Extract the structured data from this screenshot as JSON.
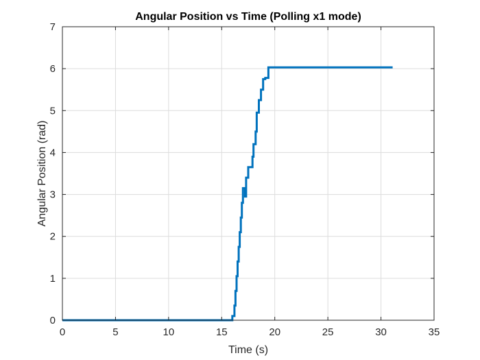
{
  "chart_data": {
    "type": "line",
    "title": "Angular Position vs Time (Polling x1 mode)",
    "xlabel": "Time (s)",
    "ylabel": "Angular Position (rad)",
    "xlim": [
      0,
      35
    ],
    "ylim": [
      0,
      7
    ],
    "xticks": [
      "0",
      "5",
      "10",
      "15",
      "20",
      "25",
      "30",
      "35"
    ],
    "yticks": [
      "0",
      "1",
      "2",
      "3",
      "4",
      "5",
      "6",
      "7"
    ],
    "grid": true,
    "legend": "none",
    "series": [
      {
        "color": "#0072BD",
        "x": [
          0,
          16.0,
          16.0,
          16.2,
          16.2,
          16.3,
          16.3,
          16.4,
          16.4,
          16.5,
          16.5,
          16.6,
          16.6,
          16.7,
          16.7,
          16.8,
          16.8,
          16.9,
          16.9,
          17.0,
          17.0,
          17.2,
          17.2,
          17.3,
          17.3,
          17.5,
          17.5,
          17.9,
          17.9,
          18.0,
          18.0,
          18.2,
          18.2,
          18.3,
          18.3,
          18.5,
          18.5,
          18.7,
          18.7,
          18.9,
          18.9,
          19.1,
          19.1,
          19.4,
          19.4,
          31.1
        ],
        "y": [
          0,
          0,
          0.1,
          0.1,
          0.35,
          0.35,
          0.7,
          0.7,
          1.05,
          1.05,
          1.4,
          1.4,
          1.75,
          1.75,
          2.1,
          2.1,
          2.45,
          2.45,
          2.8,
          2.8,
          3.15,
          3.15,
          2.95,
          2.95,
          3.4,
          3.4,
          3.65,
          3.65,
          3.9,
          3.9,
          4.2,
          4.2,
          4.5,
          4.5,
          4.95,
          4.95,
          5.25,
          5.25,
          5.5,
          5.5,
          5.75,
          5.75,
          5.78,
          5.78,
          6.03,
          6.03
        ]
      }
    ]
  }
}
